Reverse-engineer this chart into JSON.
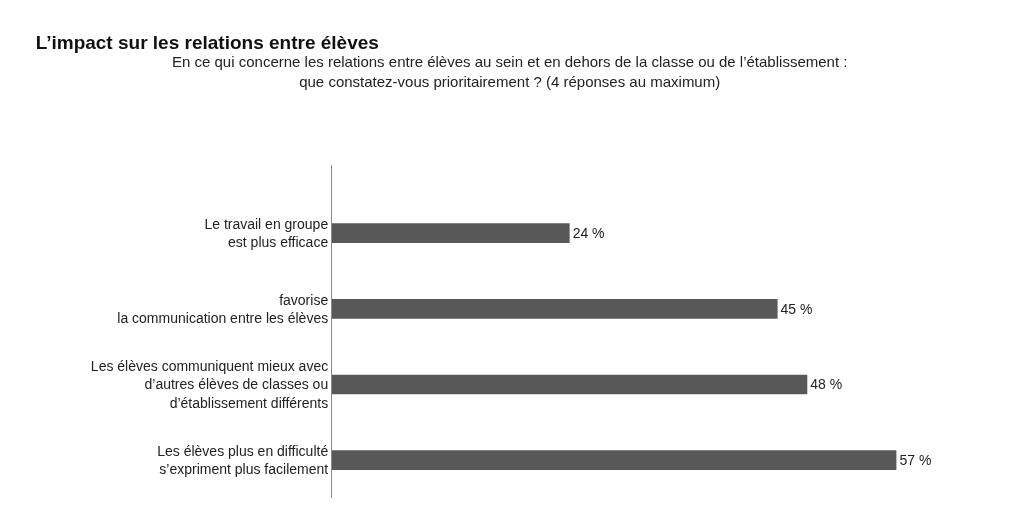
{
  "chart_data": {
    "type": "bar",
    "orientation": "horizontal",
    "title": "L’impact sur les relations entre élèves",
    "subtitle": "En ce qui concerne les relations entre élèves au sein et en dehors de la classe ou de l’établissement :\nque constatez-vous prioritairement ? (4 réponses au maximum)",
    "categories": [
      "Le travail en groupe\nest plus efficace",
      "favorise\nla communication entre les élèves",
      "Les élèves communiquent mieux avec\nd’autres élèves de classes ou\nd’établissement différents",
      "Les élèves plus en difficulté\ns’expriment plus facilement"
    ],
    "values": [
      24,
      45,
      48,
      57
    ],
    "value_labels": [
      "24 %",
      "45 %",
      "48 %",
      "57 %"
    ],
    "color": "#585858",
    "legend": false
  }
}
